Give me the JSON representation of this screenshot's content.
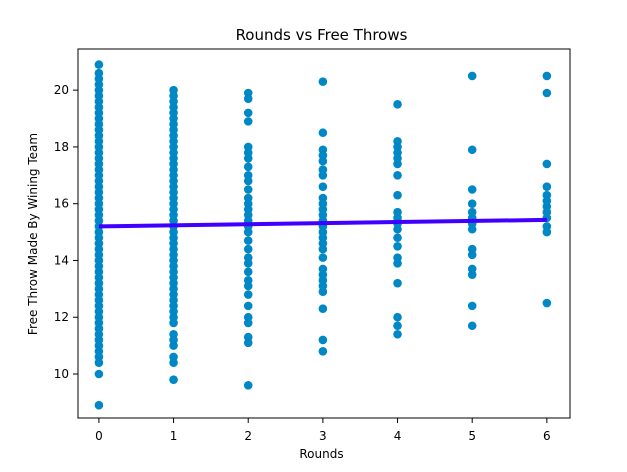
{
  "chart_data": {
    "type": "scatter",
    "title": "Rounds vs Free Throws",
    "xlabel": "Rounds",
    "ylabel": "Free Throw Made By Wining Team",
    "xlim": [
      -0.28,
      6.31
    ],
    "ylim": [
      8.45,
      21.45
    ],
    "x_ticks": [
      0,
      1,
      2,
      3,
      4,
      5,
      6
    ],
    "x_tick_labels": [
      "0",
      "1",
      "2",
      "3",
      "4",
      "5",
      "6"
    ],
    "y_ticks": [
      10,
      12,
      14,
      16,
      18,
      20
    ],
    "y_tick_labels": [
      "10",
      "12",
      "14",
      "16",
      "18",
      "20"
    ],
    "grid": false,
    "legend": false,
    "colors": {
      "points": "#0087c6",
      "trend_line": "#3f00ff",
      "axes": "#000000"
    },
    "series": [
      {
        "kind": "points",
        "points": [
          [
            0,
            8.9
          ],
          [
            0,
            10.0
          ],
          [
            0,
            10.4
          ],
          [
            0,
            10.6
          ],
          [
            0,
            10.8
          ],
          [
            0,
            11.0
          ],
          [
            0,
            11.2
          ],
          [
            0,
            11.4
          ],
          [
            0,
            11.6
          ],
          [
            0,
            11.8
          ],
          [
            0,
            12.0
          ],
          [
            0,
            12.2
          ],
          [
            0,
            12.4
          ],
          [
            0,
            12.6
          ],
          [
            0,
            12.8
          ],
          [
            0,
            13.0
          ],
          [
            0,
            13.2
          ],
          [
            0,
            13.4
          ],
          [
            0,
            13.6
          ],
          [
            0,
            13.8
          ],
          [
            0,
            14.0
          ],
          [
            0,
            14.2
          ],
          [
            0,
            14.4
          ],
          [
            0,
            14.6
          ],
          [
            0,
            14.8
          ],
          [
            0,
            15.0
          ],
          [
            0,
            15.2
          ],
          [
            0,
            15.4
          ],
          [
            0,
            15.6
          ],
          [
            0,
            15.8
          ],
          [
            0,
            16.0
          ],
          [
            0,
            16.2
          ],
          [
            0,
            16.4
          ],
          [
            0,
            16.6
          ],
          [
            0,
            16.8
          ],
          [
            0,
            17.0
          ],
          [
            0,
            17.2
          ],
          [
            0,
            17.4
          ],
          [
            0,
            17.6
          ],
          [
            0,
            17.8
          ],
          [
            0,
            18.0
          ],
          [
            0,
            18.2
          ],
          [
            0,
            18.4
          ],
          [
            0,
            18.6
          ],
          [
            0,
            18.8
          ],
          [
            0,
            19.0
          ],
          [
            0,
            19.2
          ],
          [
            0,
            19.4
          ],
          [
            0,
            19.6
          ],
          [
            0,
            19.8
          ],
          [
            0,
            20.0
          ],
          [
            0,
            20.2
          ],
          [
            0,
            20.4
          ],
          [
            0,
            20.6
          ],
          [
            0,
            20.9
          ],
          [
            1,
            9.8
          ],
          [
            1,
            10.4
          ],
          [
            1,
            10.6
          ],
          [
            1,
            11.0
          ],
          [
            1,
            11.2
          ],
          [
            1,
            11.4
          ],
          [
            1,
            11.8
          ],
          [
            1,
            12.0
          ],
          [
            1,
            12.2
          ],
          [
            1,
            12.4
          ],
          [
            1,
            12.6
          ],
          [
            1,
            12.8
          ],
          [
            1,
            13.0
          ],
          [
            1,
            13.2
          ],
          [
            1,
            13.4
          ],
          [
            1,
            13.6
          ],
          [
            1,
            13.8
          ],
          [
            1,
            14.0
          ],
          [
            1,
            14.2
          ],
          [
            1,
            14.4
          ],
          [
            1,
            14.6
          ],
          [
            1,
            14.8
          ],
          [
            1,
            15.0
          ],
          [
            1,
            15.2
          ],
          [
            1,
            15.4
          ],
          [
            1,
            15.6
          ],
          [
            1,
            15.8
          ],
          [
            1,
            16.0
          ],
          [
            1,
            16.2
          ],
          [
            1,
            16.4
          ],
          [
            1,
            16.6
          ],
          [
            1,
            16.8
          ],
          [
            1,
            17.0
          ],
          [
            1,
            17.2
          ],
          [
            1,
            17.4
          ],
          [
            1,
            17.6
          ],
          [
            1,
            17.8
          ],
          [
            1,
            18.0
          ],
          [
            1,
            18.2
          ],
          [
            1,
            18.4
          ],
          [
            1,
            18.6
          ],
          [
            1,
            18.8
          ],
          [
            1,
            19.0
          ],
          [
            1,
            19.2
          ],
          [
            1,
            19.4
          ],
          [
            1,
            19.6
          ],
          [
            1,
            19.8
          ],
          [
            1,
            20.0
          ],
          [
            2,
            9.6
          ],
          [
            2,
            11.1
          ],
          [
            2,
            11.3
          ],
          [
            2,
            11.8
          ],
          [
            2,
            12.0
          ],
          [
            2,
            12.4
          ],
          [
            2,
            12.8
          ],
          [
            2,
            13.1
          ],
          [
            2,
            13.3
          ],
          [
            2,
            13.6
          ],
          [
            2,
            13.9
          ],
          [
            2,
            14.1
          ],
          [
            2,
            14.4
          ],
          [
            2,
            14.7
          ],
          [
            2,
            15.0
          ],
          [
            2,
            15.2
          ],
          [
            2,
            15.4
          ],
          [
            2,
            15.6
          ],
          [
            2,
            15.8
          ],
          [
            2,
            16.0
          ],
          [
            2,
            16.2
          ],
          [
            2,
            16.5
          ],
          [
            2,
            16.8
          ],
          [
            2,
            17.0
          ],
          [
            2,
            17.3
          ],
          [
            2,
            17.6
          ],
          [
            2,
            17.8
          ],
          [
            2,
            18.0
          ],
          [
            2,
            18.9
          ],
          [
            2,
            19.2
          ],
          [
            2,
            19.7
          ],
          [
            2,
            19.9
          ],
          [
            3,
            10.8
          ],
          [
            3,
            11.2
          ],
          [
            3,
            12.3
          ],
          [
            3,
            12.9
          ],
          [
            3,
            13.1
          ],
          [
            3,
            13.3
          ],
          [
            3,
            13.5
          ],
          [
            3,
            13.7
          ],
          [
            3,
            14.1
          ],
          [
            3,
            14.4
          ],
          [
            3,
            14.6
          ],
          [
            3,
            14.8
          ],
          [
            3,
            15.0
          ],
          [
            3,
            15.2
          ],
          [
            3,
            15.4
          ],
          [
            3,
            15.6
          ],
          [
            3,
            15.8
          ],
          [
            3,
            16.0
          ],
          [
            3,
            16.2
          ],
          [
            3,
            16.6
          ],
          [
            3,
            17.0
          ],
          [
            3,
            17.2
          ],
          [
            3,
            17.5
          ],
          [
            3,
            17.7
          ],
          [
            3,
            17.9
          ],
          [
            3,
            18.5
          ],
          [
            3,
            20.3
          ],
          [
            4,
            11.4
          ],
          [
            4,
            11.7
          ],
          [
            4,
            12.0
          ],
          [
            4,
            13.2
          ],
          [
            4,
            13.9
          ],
          [
            4,
            14.1
          ],
          [
            4,
            14.5
          ],
          [
            4,
            14.8
          ],
          [
            4,
            15.1
          ],
          [
            4,
            15.3
          ],
          [
            4,
            15.5
          ],
          [
            4,
            15.7
          ],
          [
            4,
            16.3
          ],
          [
            4,
            17.0
          ],
          [
            4,
            17.4
          ],
          [
            4,
            17.6
          ],
          [
            4,
            17.8
          ],
          [
            4,
            18.0
          ],
          [
            4,
            18.2
          ],
          [
            4,
            19.5
          ],
          [
            5,
            11.7
          ],
          [
            5,
            12.4
          ],
          [
            5,
            13.5
          ],
          [
            5,
            13.7
          ],
          [
            5,
            14.2
          ],
          [
            5,
            14.4
          ],
          [
            5,
            15.1
          ],
          [
            5,
            15.3
          ],
          [
            5,
            15.5
          ],
          [
            5,
            15.7
          ],
          [
            5,
            16.0
          ],
          [
            5,
            16.5
          ],
          [
            5,
            17.9
          ],
          [
            5,
            20.5
          ],
          [
            6,
            12.5
          ],
          [
            6,
            15.0
          ],
          [
            6,
            15.2
          ],
          [
            6,
            15.5
          ],
          [
            6,
            15.7
          ],
          [
            6,
            15.9
          ],
          [
            6,
            16.1
          ],
          [
            6,
            16.3
          ],
          [
            6,
            16.6
          ],
          [
            6,
            17.4
          ],
          [
            6,
            19.9
          ],
          [
            6,
            20.5
          ]
        ]
      },
      {
        "kind": "trend_line",
        "x": [
          0,
          6
        ],
        "y": [
          15.2,
          15.43
        ]
      }
    ]
  }
}
